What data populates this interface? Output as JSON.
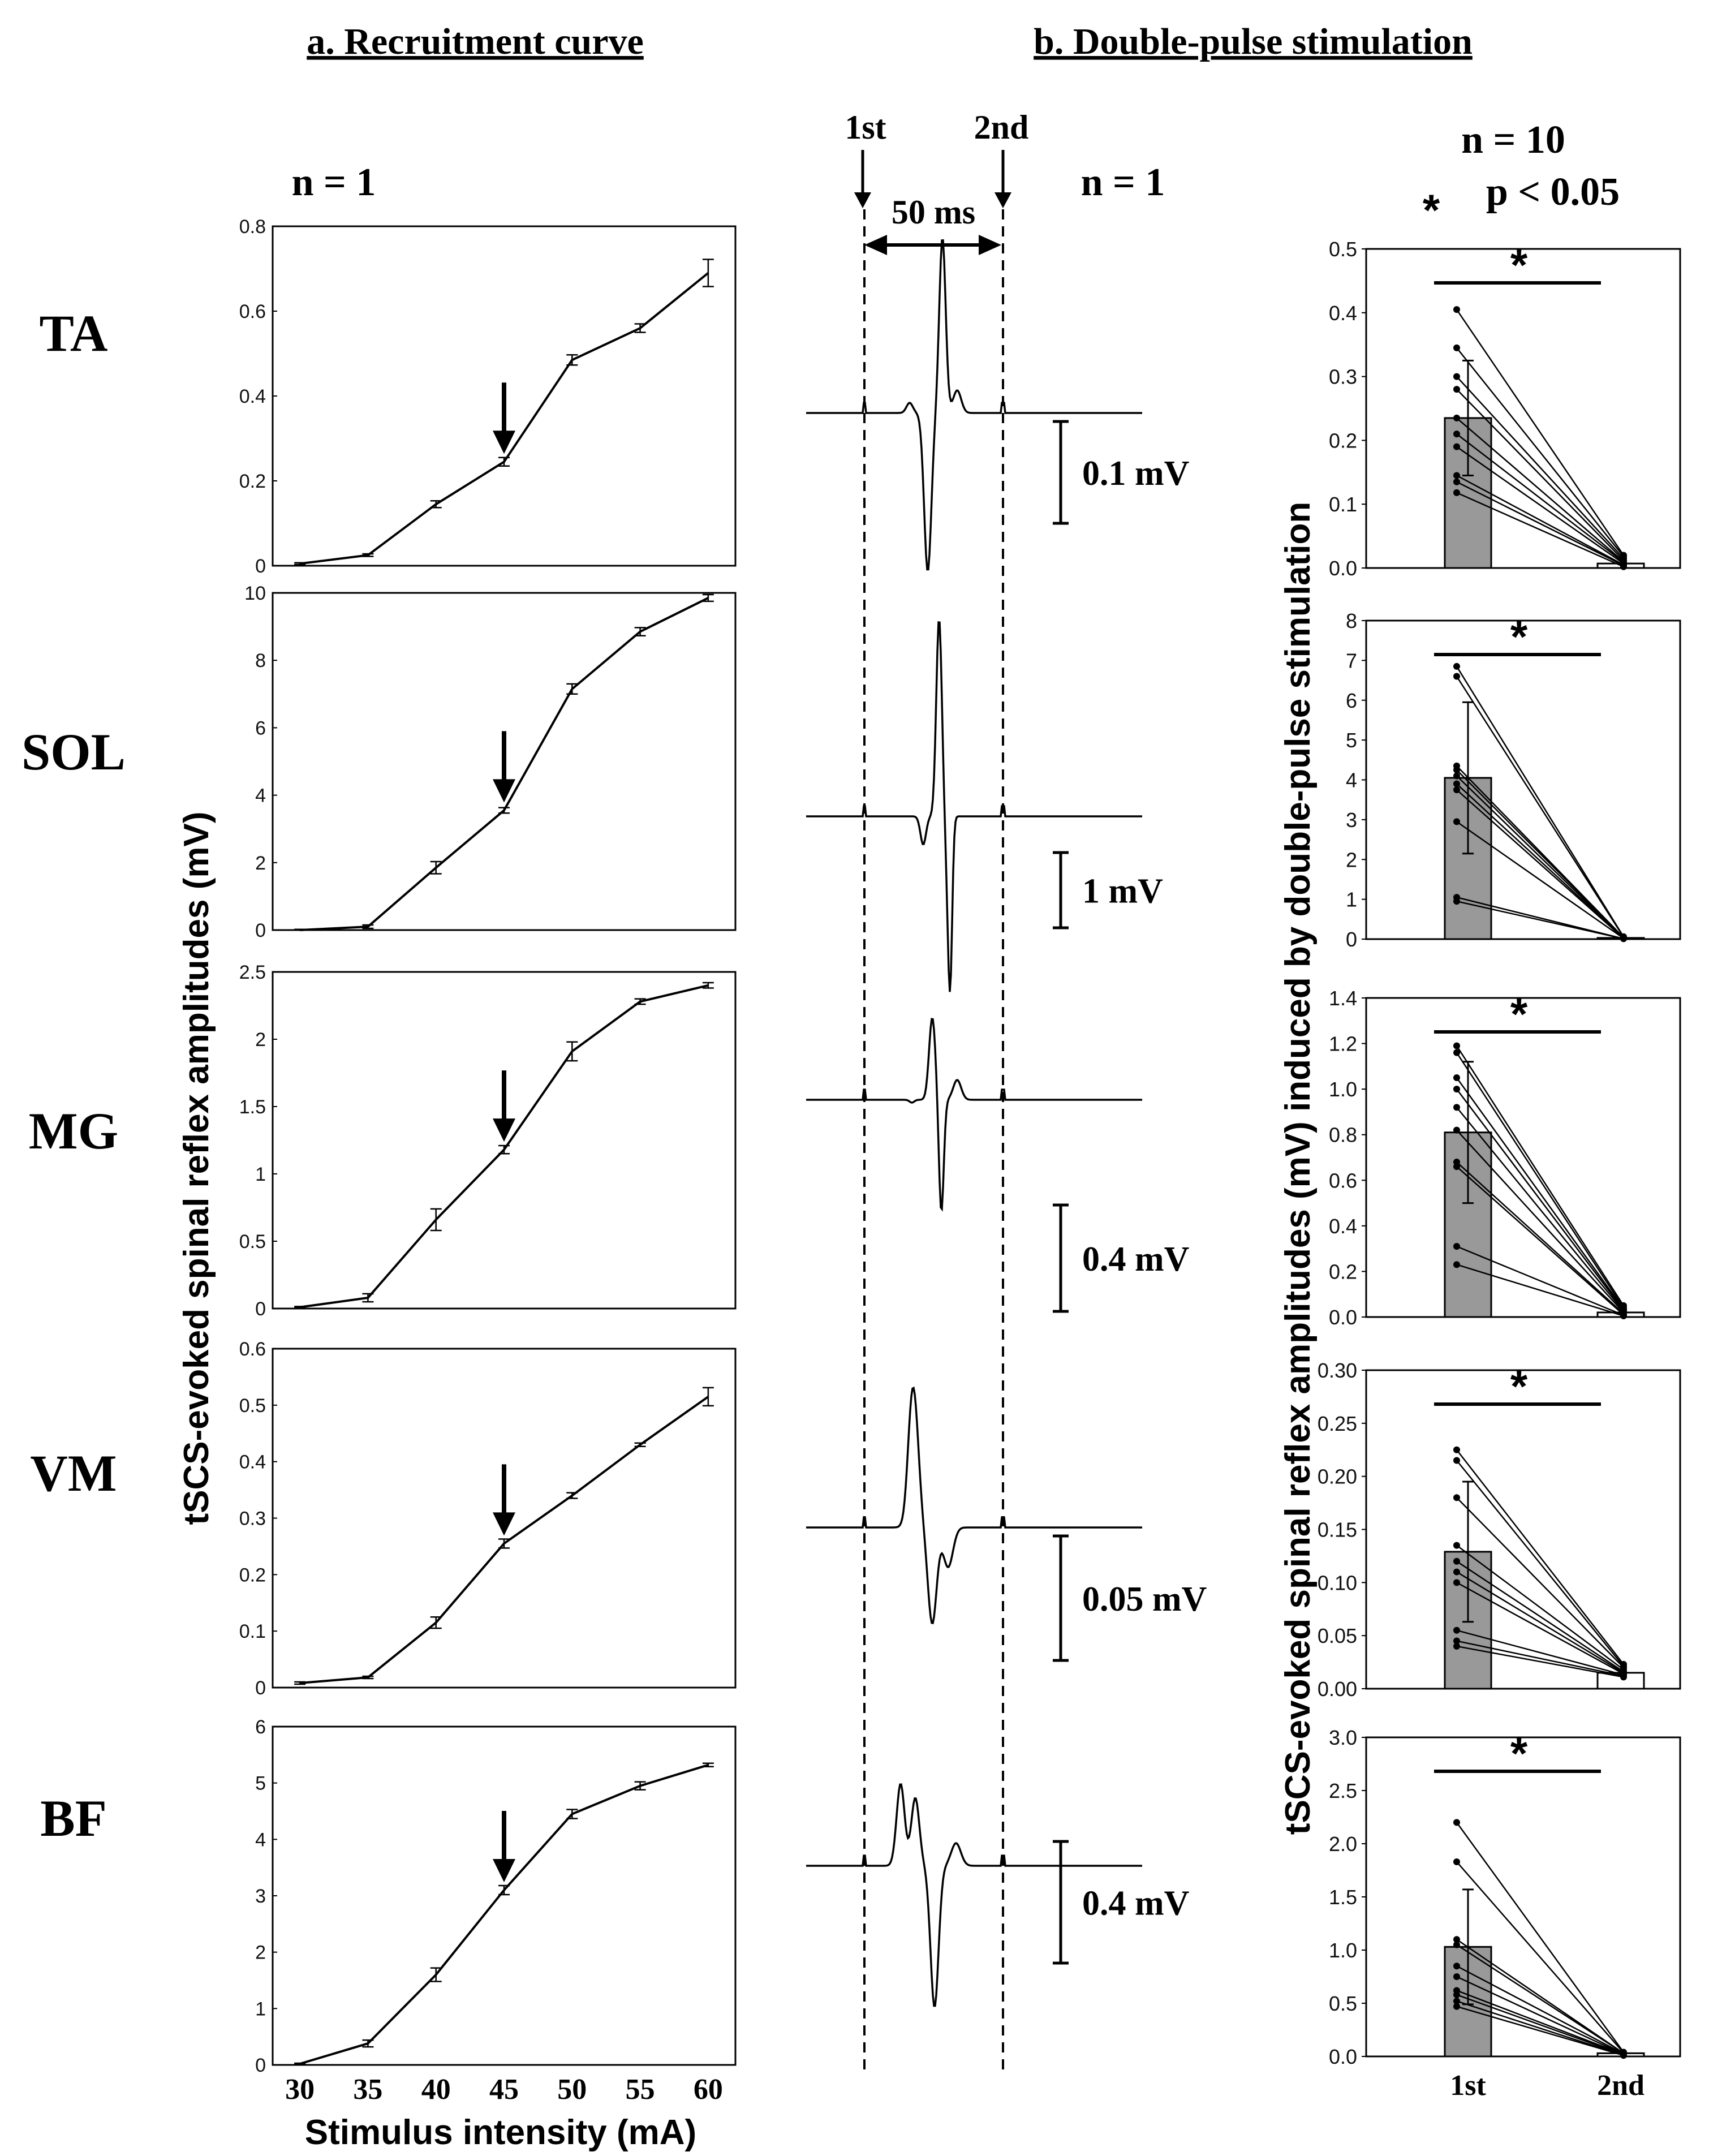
{
  "headers": {
    "a": "a. Recruitment curve",
    "b": "b. Double-pulse stimulation"
  },
  "n_left": "n = 1",
  "n_mid": "n = 1",
  "n_right": "n = 10",
  "sig_star": "*",
  "p_label": "p < 0.05",
  "markers": {
    "first": "1st",
    "second": "2nd",
    "interval": "50 ms"
  },
  "left_ylabel": "tSCS-evoked spinal reflex amplitudes (mV)",
  "right_ylabel": "tSCS-evoked spinal reflex amplitudes (mV) induced by double-pulse stimulation",
  "left_xlabel": "Stimulus intensity (mA)",
  "bar_categories": [
    "1st",
    "2nd"
  ],
  "chart_data": [
    {
      "type": "line",
      "panel": "recruitment",
      "muscle": "TA",
      "x": [
        30,
        35,
        40,
        45,
        50,
        55,
        60
      ],
      "xticks": [
        "30",
        "35",
        "40",
        "45",
        "50",
        "55",
        "60"
      ],
      "y": [
        0.005,
        0.025,
        0.145,
        0.245,
        0.485,
        0.56,
        0.69
      ],
      "err": [
        0.002,
        0.003,
        0.008,
        0.01,
        0.012,
        0.01,
        0.032
      ],
      "ylim": [
        0,
        0.8
      ],
      "yticks": [
        "0",
        "0.2",
        "0.4",
        "0.6",
        "0.8"
      ],
      "arrow_at": 45,
      "xlabel": "Stimulus intensity (mA)",
      "ylabel": "tSCS-evoked spinal reflex amplitudes (mV)"
    },
    {
      "type": "line",
      "panel": "recruitment",
      "muscle": "SOL",
      "x": [
        30,
        35,
        40,
        45,
        50,
        55,
        60
      ],
      "xticks": [
        "30",
        "35",
        "40",
        "45",
        "50",
        "55",
        "60"
      ],
      "y": [
        0.0,
        0.1,
        1.85,
        3.55,
        7.15,
        8.85,
        9.85
      ],
      "err": [
        0.02,
        0.05,
        0.18,
        0.08,
        0.15,
        0.12,
        0.1
      ],
      "ylim": [
        0,
        10
      ],
      "yticks": [
        "0",
        "2",
        "4",
        "6",
        "8",
        "10"
      ],
      "arrow_at": 45
    },
    {
      "type": "line",
      "panel": "recruitment",
      "muscle": "MG",
      "x": [
        30,
        35,
        40,
        45,
        50,
        55,
        60
      ],
      "xticks": [
        "30",
        "35",
        "40",
        "45",
        "50",
        "55",
        "60"
      ],
      "y": [
        0.01,
        0.08,
        0.66,
        1.18,
        1.91,
        2.28,
        2.4
      ],
      "err": [
        0.005,
        0.03,
        0.08,
        0.03,
        0.07,
        0.02,
        0.02
      ],
      "ylim": [
        0,
        2.5
      ],
      "yticks": [
        "0",
        "0.5",
        "1",
        "1.5",
        "2",
        "2.5"
      ],
      "arrow_at": 45
    },
    {
      "type": "line",
      "panel": "recruitment",
      "muscle": "VM",
      "x": [
        30,
        35,
        40,
        45,
        50,
        55,
        60
      ],
      "xticks": [
        "30",
        "35",
        "40",
        "45",
        "50",
        "55",
        "60"
      ],
      "y": [
        0.008,
        0.018,
        0.115,
        0.255,
        0.34,
        0.43,
        0.515
      ],
      "err": [
        0.002,
        0.002,
        0.01,
        0.008,
        0.005,
        0.003,
        0.016
      ],
      "ylim": [
        0,
        0.6
      ],
      "yticks": [
        "0",
        "0.1",
        "0.2",
        "0.3",
        "0.4",
        "0.5",
        "0.6"
      ],
      "arrow_at": 45
    },
    {
      "type": "line",
      "panel": "recruitment",
      "muscle": "BF",
      "x": [
        30,
        35,
        40,
        45,
        50,
        55,
        60
      ],
      "xticks": [
        "30",
        "35",
        "40",
        "45",
        "50",
        "55",
        "60"
      ],
      "y": [
        0.02,
        0.38,
        1.6,
        3.1,
        4.45,
        4.95,
        5.32
      ],
      "err": [
        0.01,
        0.06,
        0.12,
        0.08,
        0.08,
        0.07,
        0.03
      ],
      "ylim": [
        0,
        6
      ],
      "yticks": [
        "0",
        "1",
        "2",
        "3",
        "4",
        "5",
        "6"
      ],
      "arrow_at": 45
    },
    {
      "type": "bar",
      "panel": "double-pulse",
      "muscle": "TA",
      "categories": [
        "1st",
        "2nd"
      ],
      "values": [
        0.235,
        0.007
      ],
      "err": [
        0.09,
        0.0
      ],
      "individual_1st": [
        0.405,
        0.345,
        0.3,
        0.28,
        0.235,
        0.21,
        0.19,
        0.145,
        0.135,
        0.118
      ],
      "individual_2nd": [
        0.02,
        0.018,
        0.015,
        0.012,
        0.01,
        0.009,
        0.007,
        0.005,
        0.004,
        0.002
      ],
      "ylim": [
        0,
        0.5
      ],
      "yticks": [
        "0.0",
        "0.1",
        "0.2",
        "0.3",
        "0.4",
        "0.5"
      ],
      "significance": "*"
    },
    {
      "type": "bar",
      "panel": "double-pulse",
      "muscle": "SOL",
      "categories": [
        "1st",
        "2nd"
      ],
      "values": [
        4.05,
        0.03
      ],
      "err": [
        1.9,
        0.0
      ],
      "individual_1st": [
        6.85,
        6.6,
        4.35,
        4.25,
        4.1,
        3.9,
        3.75,
        2.95,
        1.05,
        0.95
      ],
      "individual_2nd": [
        0.06,
        0.05,
        0.04,
        0.04,
        0.03,
        0.03,
        0.02,
        0.02,
        0.01,
        0.01
      ],
      "ylim": [
        0,
        8
      ],
      "yticks": [
        "0",
        "1",
        "2",
        "3",
        "4",
        "5",
        "6",
        "7",
        "8"
      ],
      "significance": "*"
    },
    {
      "type": "bar",
      "panel": "double-pulse",
      "muscle": "MG",
      "categories": [
        "1st",
        "2nd"
      ],
      "values": [
        0.81,
        0.02
      ],
      "err": [
        0.31,
        0.0
      ],
      "individual_1st": [
        1.19,
        1.16,
        1.05,
        1.0,
        0.92,
        0.82,
        0.68,
        0.66,
        0.31,
        0.23
      ],
      "individual_2nd": [
        0.05,
        0.04,
        0.035,
        0.03,
        0.025,
        0.02,
        0.015,
        0.01,
        0.008,
        0.005
      ],
      "ylim": [
        0,
        1.4
      ],
      "yticks": [
        "0.0",
        "0.2",
        "0.4",
        "0.6",
        "0.8",
        "1.0",
        "1.2",
        "1.4"
      ],
      "significance": "*"
    },
    {
      "type": "bar",
      "panel": "double-pulse",
      "muscle": "VM",
      "categories": [
        "1st",
        "2nd"
      ],
      "values": [
        0.129,
        0.015
      ],
      "err": [
        0.066,
        0.0
      ],
      "individual_1st": [
        0.225,
        0.215,
        0.18,
        0.135,
        0.12,
        0.11,
        0.1,
        0.055,
        0.045,
        0.04
      ],
      "individual_2nd": [
        0.023,
        0.021,
        0.02,
        0.018,
        0.016,
        0.015,
        0.014,
        0.013,
        0.012,
        0.011
      ],
      "ylim": [
        0,
        0.3
      ],
      "yticks": [
        "0.00",
        "0.05",
        "0.10",
        "0.15",
        "0.20",
        "0.25",
        "0.30"
      ],
      "significance": "*"
    },
    {
      "type": "bar",
      "panel": "double-pulse",
      "muscle": "BF",
      "categories": [
        "1st",
        "2nd"
      ],
      "values": [
        1.03,
        0.03
      ],
      "err": [
        0.54,
        0.0
      ],
      "individual_1st": [
        2.2,
        1.83,
        1.1,
        1.05,
        0.85,
        0.75,
        0.62,
        0.58,
        0.52,
        0.47
      ],
      "individual_2nd": [
        0.04,
        0.035,
        0.03,
        0.03,
        0.025,
        0.02,
        0.02,
        0.015,
        0.01,
        0.01
      ],
      "ylim": [
        0,
        3.0
      ],
      "yticks": [
        "0.0",
        "0.5",
        "1.0",
        "1.5",
        "2.0",
        "2.5",
        "3.0"
      ],
      "significance": "*"
    }
  ],
  "traces": [
    {
      "muscle": "TA",
      "scale_label": "0.1 mV"
    },
    {
      "muscle": "SOL",
      "scale_label": "1 mV"
    },
    {
      "muscle": "MG",
      "scale_label": "0.4 mV"
    },
    {
      "muscle": "VM",
      "scale_label": "0.05 mV"
    },
    {
      "muscle": "BF",
      "scale_label": "0.4 mV"
    }
  ],
  "colors": {
    "bar_first": "#999999",
    "bar_second": "#ffffff",
    "ink": "#000000"
  }
}
